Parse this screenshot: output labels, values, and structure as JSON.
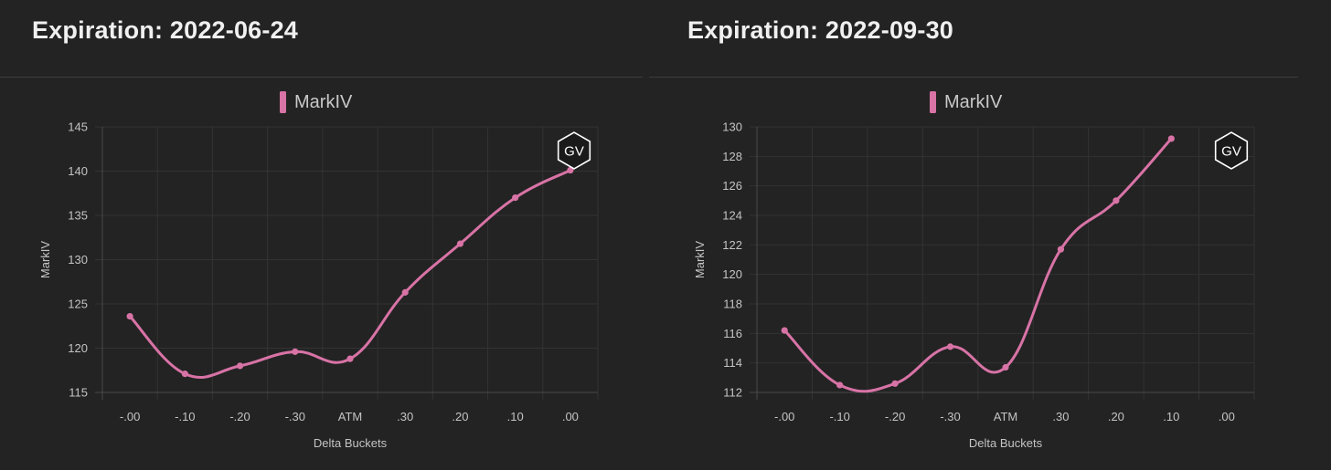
{
  "panels": [
    {
      "title": "Expiration: 2022-06-24",
      "badge": "GV",
      "chart_data": {
        "type": "line",
        "legend": [
          "MarkIV"
        ],
        "legend_placement": "top-center",
        "series": [
          {
            "name": "MarkIV",
            "color": "#d873a6",
            "values": [
              123.6,
              117.1,
              118.0,
              119.6,
              118.8,
              126.3,
              131.8,
              137.0,
              140.1
            ]
          }
        ],
        "categories": [
          "-.00",
          "-.10",
          "-.20",
          "-.30",
          "ATM",
          ".30",
          ".20",
          ".10",
          ".00"
        ],
        "xlabel": "Delta Buckets",
        "ylabel": "MarkIV",
        "ylim": [
          115,
          145
        ],
        "yticks": [
          115,
          120,
          125,
          130,
          135,
          140,
          145
        ],
        "grid": true
      }
    },
    {
      "title": "Expiration: 2022-09-30",
      "badge": "GV",
      "chart_data": {
        "type": "line",
        "legend": [
          "MarkIV"
        ],
        "legend_placement": "top-center",
        "series": [
          {
            "name": "MarkIV",
            "color": "#d873a6",
            "values": [
              116.2,
              112.5,
              112.6,
              115.1,
              113.7,
              121.7,
              125.0,
              129.2,
              null
            ]
          }
        ],
        "categories": [
          "-.00",
          "-.10",
          "-.20",
          "-.30",
          "ATM",
          ".30",
          ".20",
          ".10",
          ".00"
        ],
        "xlabel": "Delta Buckets",
        "ylabel": "MarkIV",
        "ylim": [
          112,
          130
        ],
        "yticks": [
          112,
          114,
          116,
          118,
          120,
          122,
          124,
          126,
          128,
          130
        ],
        "grid": true
      }
    }
  ]
}
